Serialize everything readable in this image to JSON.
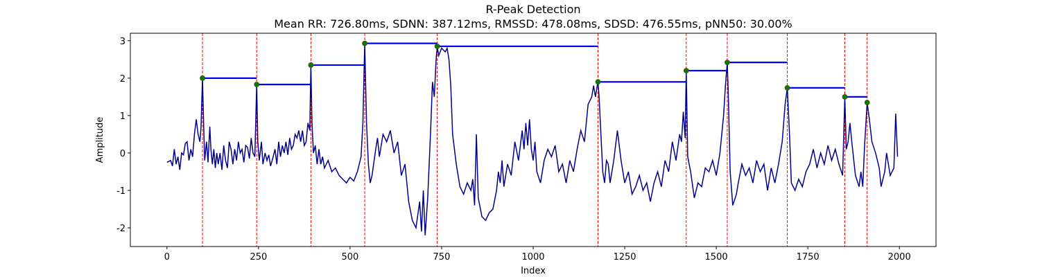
{
  "chart_data": {
    "type": "line",
    "title": "R-Peak Detection",
    "subtitle": "Mean RR: 726.80ms, SDNN: 387.12ms, RMSSD: 478.08ms, SDSD: 476.55ms, pNN50: 30.00%",
    "xlabel": "Index",
    "ylabel": "Amplitude",
    "xlim": [
      -100,
      2100
    ],
    "ylim": [
      -2.5,
      3.2
    ],
    "xticks": [
      0,
      250,
      500,
      750,
      1000,
      1250,
      1500,
      1750,
      2000
    ],
    "yticks": [
      -2,
      -1,
      0,
      1,
      2,
      3
    ],
    "color": "#00008b",
    "x": [
      0,
      10,
      15,
      20,
      25,
      30,
      35,
      40,
      45,
      50,
      55,
      60,
      65,
      70,
      75,
      80,
      85,
      90,
      93,
      97,
      100,
      103,
      108,
      112,
      117,
      120,
      124,
      128,
      132,
      136,
      140,
      145,
      150,
      155,
      160,
      165,
      170,
      175,
      180,
      185,
      190,
      195,
      200,
      205,
      210,
      215,
      220,
      225,
      230,
      235,
      240,
      245,
      248,
      252,
      258,
      262,
      268,
      273,
      278,
      283,
      290,
      295,
      300,
      305,
      310,
      315,
      320,
      325,
      330,
      335,
      340,
      345,
      350,
      355,
      360,
      365,
      370,
      375,
      380,
      385,
      390,
      393,
      396,
      400,
      405,
      410,
      415,
      420,
      425,
      430,
      440,
      450,
      460,
      470,
      480,
      490,
      500,
      510,
      520,
      530,
      535,
      540,
      545,
      550,
      555,
      560,
      570,
      575,
      580,
      590,
      600,
      610,
      620,
      630,
      640,
      650,
      660,
      670,
      680,
      690,
      695,
      700,
      705,
      712,
      720,
      725,
      730,
      735,
      738,
      742,
      750,
      760,
      765,
      770,
      775,
      780,
      790,
      800,
      810,
      820,
      830,
      835,
      840,
      845,
      850,
      860,
      870,
      880,
      890,
      900,
      905,
      910,
      915,
      920,
      930,
      940,
      950,
      960,
      970,
      975,
      980,
      985,
      990,
      995,
      1000,
      1005,
      1010,
      1020,
      1030,
      1040,
      1050,
      1060,
      1070,
      1080,
      1090,
      1100,
      1110,
      1120,
      1130,
      1140,
      1150,
      1160,
      1165,
      1170,
      1175,
      1177,
      1180,
      1185,
      1190,
      1195,
      1200,
      1205,
      1210,
      1220,
      1230,
      1240,
      1250,
      1260,
      1270,
      1280,
      1290,
      1300,
      1310,
      1320,
      1330,
      1340,
      1350,
      1360,
      1370,
      1380,
      1390,
      1400,
      1405,
      1410,
      1415,
      1418,
      1422,
      1430,
      1440,
      1450,
      1460,
      1470,
      1480,
      1490,
      1500,
      1510,
      1520,
      1525,
      1530,
      1533,
      1538,
      1545,
      1555,
      1560,
      1570,
      1580,
      1590,
      1600,
      1610,
      1620,
      1630,
      1640,
      1650,
      1660,
      1670,
      1680,
      1688,
      1694,
      1700,
      1705,
      1715,
      1725,
      1735,
      1745,
      1755,
      1765,
      1775,
      1785,
      1795,
      1805,
      1815,
      1825,
      1835,
      1845,
      1851,
      1855,
      1860,
      1865,
      1870,
      1880,
      1890,
      1895,
      1900,
      1905,
      1912,
      1918,
      1925,
      1935,
      1945,
      1950,
      1960,
      1965,
      1975,
      1985,
      1990,
      1995
    ],
    "values": [
      -0.25,
      -0.2,
      -0.35,
      0.1,
      -0.3,
      -0.1,
      -0.45,
      0.0,
      -0.05,
      0.25,
      0.3,
      -0.2,
      0.1,
      -0.1,
      0.5,
      0.9,
      0.5,
      0.3,
      0.7,
      2.0,
      0.8,
      -0.2,
      0.3,
      -0.25,
      0.7,
      0.1,
      -0.3,
      0.1,
      -0.4,
      0.0,
      -0.3,
      0.0,
      -0.45,
      0.2,
      -0.2,
      -0.4,
      0.3,
      0.1,
      -0.3,
      0.1,
      -0.2,
      0.3,
      0.0,
      0.1,
      -0.25,
      0.2,
      0.15,
      -0.15,
      0.4,
      0.0,
      -0.1,
      1.83,
      0.3,
      -0.2,
      0.3,
      -0.3,
      0.0,
      -0.2,
      -0.05,
      -0.35,
      -0.1,
      0.1,
      -0.3,
      0.3,
      -0.1,
      0.2,
      0.0,
      0.3,
      -0.05,
      0.4,
      0.1,
      0.2,
      0.5,
      0.4,
      0.6,
      0.3,
      0.6,
      0.2,
      0.3,
      0.8,
      0.6,
      2.35,
      0.8,
      0.0,
      0.2,
      -0.3,
      0.1,
      -0.3,
      -0.1,
      -0.4,
      -0.2,
      -0.5,
      -0.4,
      -0.6,
      -0.7,
      -0.8,
      -0.65,
      -0.75,
      -0.5,
      -0.1,
      0.8,
      2.93,
      0.8,
      -0.3,
      -0.8,
      -0.6,
      0.1,
      0.4,
      -0.1,
      0.5,
      0.3,
      0.6,
      0.0,
      0.3,
      -0.6,
      -0.3,
      -1.3,
      -1.8,
      -2.0,
      -1.3,
      -2.1,
      -1.0,
      -2.2,
      -1.2,
      0.6,
      1.9,
      1.5,
      2.5,
      2.85,
      2.6,
      2.8,
      2.7,
      2.8,
      2.5,
      1.8,
      0.5,
      -0.3,
      -0.9,
      -1.1,
      -0.8,
      -1.0,
      -0.7,
      -1.4,
      0.5,
      -1.2,
      -1.7,
      -1.8,
      -1.6,
      -1.5,
      -1.0,
      -0.5,
      -0.8,
      -0.2,
      -0.9,
      -0.3,
      -0.6,
      0.3,
      -0.2,
      0.6,
      0.1,
      0.8,
      0.2,
      0.9,
      0.1,
      -0.2,
      0.3,
      -0.5,
      -0.8,
      -0.2,
      0.1,
      -0.1,
      0.2,
      -0.5,
      -0.3,
      -0.8,
      -0.2,
      -0.5,
      0.1,
      0.6,
      0.3,
      1.3,
      1.5,
      1.8,
      1.5,
      1.8,
      1.9,
      1.5,
      0.5,
      -0.5,
      -0.8,
      -0.2,
      -0.3,
      -0.8,
      -0.2,
      0.6,
      -0.2,
      -0.8,
      -0.5,
      -1.1,
      -0.9,
      -0.6,
      -1.0,
      -0.8,
      -1.3,
      -0.8,
      -0.5,
      -0.9,
      -0.2,
      -0.5,
      0.3,
      -0.2,
      0.5,
      0.3,
      1.1,
      0.4,
      2.2,
      -0.1,
      -0.5,
      -1.2,
      -0.8,
      -0.9,
      -0.4,
      -0.5,
      -0.2,
      -0.6,
      0.0,
      1.0,
      1.8,
      2.42,
      1.5,
      -0.5,
      -1.4,
      -1.1,
      -0.8,
      -0.3,
      -0.6,
      -0.4,
      -0.8,
      -0.2,
      -0.5,
      -0.3,
      -1.0,
      -0.4,
      -0.8,
      -0.3,
      0.3,
      1.3,
      1.74,
      0.5,
      -0.8,
      -1.0,
      -0.7,
      -0.9,
      -0.5,
      -0.3,
      0.1,
      -0.4,
      0.0,
      -0.3,
      0.2,
      -0.2,
      0.1,
      -0.3,
      -0.6,
      1.5,
      0.1,
      0.3,
      0.8,
      0.3,
      -0.6,
      -0.9,
      -0.5,
      -0.9,
      0.2,
      1.35,
      0.9,
      0.3,
      0.0,
      -0.4,
      -0.9,
      -0.5,
      0.0,
      -0.6,
      -0.4,
      1.05,
      -0.1
    ],
    "peaks": {
      "x": [
        97,
        245,
        393,
        540,
        738,
        1177,
        1418,
        1530,
        1694,
        1851,
        1912
      ],
      "values": [
        2.0,
        1.83,
        2.35,
        2.93,
        2.85,
        1.9,
        2.2,
        2.42,
        1.74,
        1.5,
        1.35
      ],
      "color": "#008000"
    },
    "rr_color": "#0000ff",
    "vline_color": "#ff0000"
  }
}
